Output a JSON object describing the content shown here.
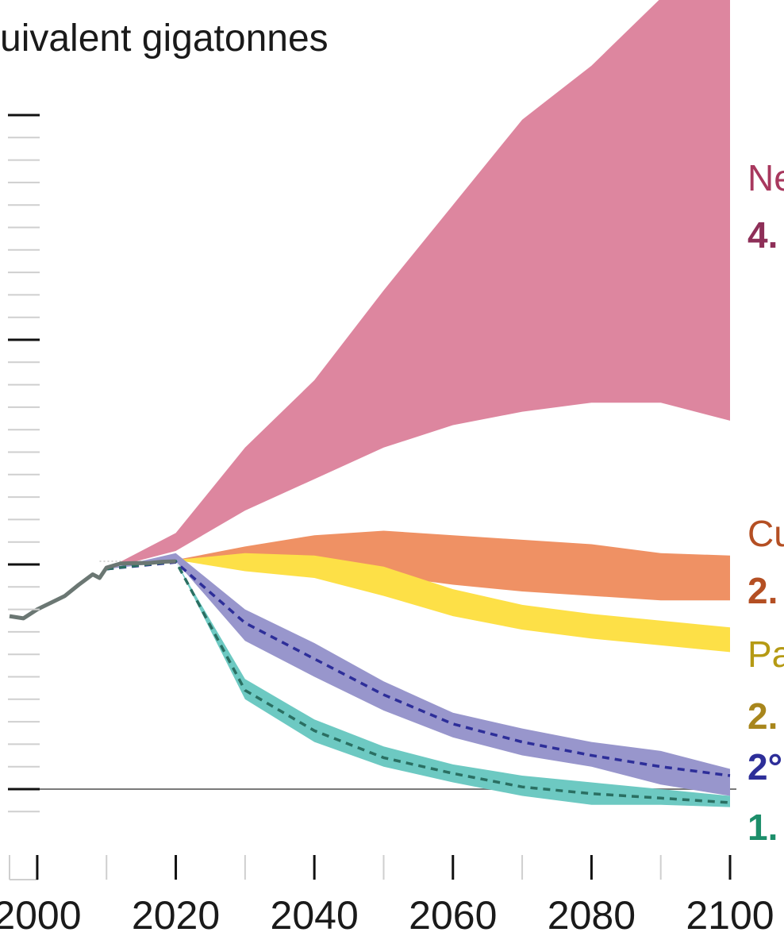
{
  "chart_data": {
    "type": "area",
    "title": "",
    "ylabel": "uivalent gigatonnes",
    "xlabel": "",
    "xlim": [
      1996,
      2100
    ],
    "ylim": [
      -10,
      160
    ],
    "x_ticks": [
      2000,
      2020,
      2040,
      2060,
      2080,
      2100
    ],
    "x_tick_labels": [
      "2000",
      "2020",
      "2040",
      "2060",
      "2080",
      "2100"
    ],
    "y_ticks_major": [
      0,
      50,
      100,
      150
    ],
    "y_ticks_minor": [
      -5,
      5,
      10,
      15,
      20,
      25,
      30,
      35,
      40,
      45,
      55,
      60,
      65,
      70,
      75,
      80,
      85,
      90,
      95,
      105,
      110,
      115,
      120,
      125,
      130,
      135,
      140,
      145
    ],
    "zero_line": true,
    "reference_line_2020": 50.7,
    "historical": {
      "x": [
        1996,
        1998,
        2000,
        2002,
        2004,
        2006,
        2008,
        2009,
        2010,
        2012,
        2014,
        2016,
        2018,
        2020
      ],
      "y": [
        38.5,
        38.0,
        40.0,
        41.5,
        43.0,
        45.5,
        47.8,
        47.0,
        49.3,
        50.2,
        50.3,
        50.3,
        50.6,
        50.7
      ]
    },
    "series": [
      {
        "name": "Ne",
        "label": "Ne",
        "value_label": "4.",
        "color": "#dd869f",
        "label_color": "#a8385e",
        "value_color": "#8e2f58",
        "x": [
          2010,
          2020,
          2030,
          2040,
          2050,
          2060,
          2070,
          2080,
          2090,
          2100
        ],
        "upper": [
          49.0,
          57.0,
          76.0,
          91.0,
          111.0,
          130.0,
          149.0,
          161.0,
          176.0,
          193.0
        ],
        "lower": [
          49.0,
          53.0,
          62.0,
          69.0,
          76.0,
          81.0,
          84.0,
          86.0,
          86.0,
          82.0
        ]
      },
      {
        "name": "Cu",
        "label": "Cu",
        "value_label": "2.",
        "color": "#ef9164",
        "label_color": "#b44f23",
        "value_color": "#b44f23",
        "x": [
          2010,
          2020,
          2030,
          2040,
          2050,
          2060,
          2070,
          2080,
          2090,
          2100
        ],
        "upper": [
          49.0,
          51.0,
          54.0,
          56.5,
          57.5,
          56.5,
          55.5,
          54.5,
          52.5,
          52.0
        ],
        "lower": [
          49.0,
          51.0,
          49.0,
          49.0,
          47.5,
          45.5,
          44.0,
          43.0,
          42.0,
          42.0
        ]
      },
      {
        "name": "Pa",
        "label": "Pa",
        "value_label": "2.",
        "color": "#fde047",
        "label_color": "#b59a14",
        "value_color": "#a8861c",
        "x": [
          2010,
          2020,
          2030,
          2040,
          2050,
          2060,
          2070,
          2080,
          2090,
          2100
        ],
        "upper": [
          49.0,
          51.0,
          52.5,
          52.0,
          49.5,
          44.5,
          41.0,
          39.0,
          37.5,
          36.0
        ],
        "lower": [
          49.0,
          51.0,
          48.5,
          47.0,
          43.0,
          38.5,
          35.5,
          33.5,
          32.0,
          30.5
        ]
      },
      {
        "name": "2°",
        "label": "",
        "value_label": "2°",
        "color": "#9896cc",
        "label_color": "#2d2e99",
        "value_color": "#2d2e99",
        "dash_color": "#2d2e99",
        "x": [
          2010,
          2020,
          2030,
          2040,
          2050,
          2060,
          2070,
          2080,
          2090,
          2100
        ],
        "upper": [
          49.0,
          52.5,
          40.0,
          32.5,
          24.0,
          17.0,
          13.5,
          10.5,
          8.5,
          4.5
        ],
        "lower": [
          49.0,
          50.7,
          33.0,
          25.0,
          17.5,
          11.5,
          7.5,
          5.0,
          1.0,
          -1.5
        ],
        "median": [
          49.0,
          50.5,
          37.0,
          29.0,
          21.0,
          14.5,
          10.5,
          7.5,
          5.0,
          3.0
        ]
      },
      {
        "name": "1.",
        "label": "",
        "value_label": "1.",
        "color": "#6dc9c2",
        "label_color": "#1c8e6a",
        "value_color": "#1c8e6a",
        "dash_color": "#2a6f62",
        "x": [
          2010,
          2020,
          2030,
          2040,
          2050,
          2060,
          2070,
          2080,
          2090,
          2100
        ],
        "upper": [
          49.0,
          50.7,
          24.5,
          15.5,
          9.5,
          5.5,
          3.0,
          1.5,
          0.0,
          -1.5
        ],
        "lower": [
          49.0,
          50.7,
          20.0,
          10.5,
          5.0,
          1.5,
          -1.5,
          -3.5,
          -3.5,
          -4.0
        ],
        "median": [
          49.0,
          50.7,
          22.0,
          13.0,
          7.0,
          3.5,
          0.5,
          -1.0,
          -2.0,
          -3.0
        ]
      }
    ]
  }
}
